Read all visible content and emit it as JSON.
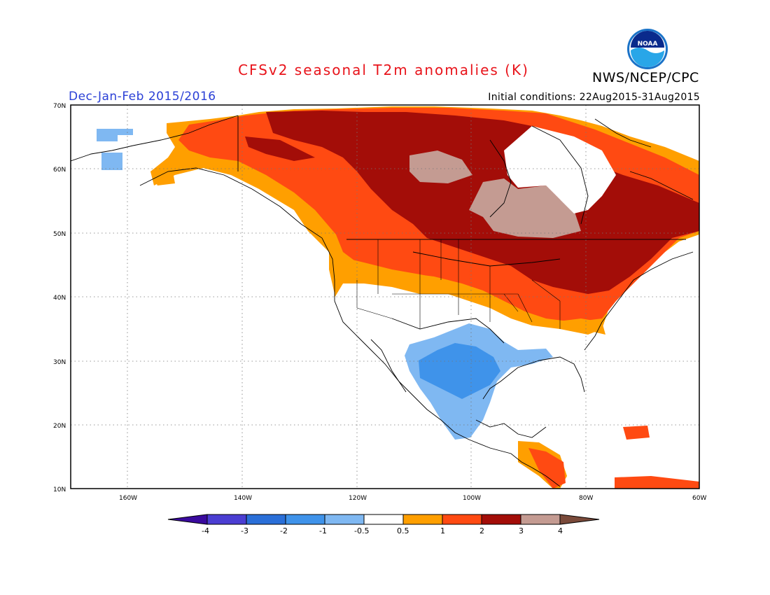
{
  "title": "CFSv2 seasonal T2m anomalies (K)",
  "agency": "NWS/NCEP/CPC",
  "logo_text": "NOAA",
  "season_label": "Dec-Jan-Feb 2015/2016",
  "initial_conditions": "Initial conditions: 22Aug2015-31Aug2015",
  "map": {
    "lon_range": [
      -172,
      -60
    ],
    "lat_range": [
      10,
      70
    ],
    "lat_ticks": [
      "10N",
      "20N",
      "30N",
      "40N",
      "50N",
      "60N",
      "70N"
    ],
    "lon_ticks": [
      "160W",
      "140W",
      "120W",
      "100W",
      "80W",
      "60W"
    ],
    "gridlines": true
  },
  "colorbar": {
    "labels": [
      "-4",
      "-3",
      "-2",
      "-1",
      "-0.5",
      "0.5",
      "1",
      "2",
      "3",
      "4"
    ],
    "colors": [
      "#3a0a9e",
      "#4b3ed2",
      "#2a6fd8",
      "#3f93ea",
      "#7fb8f2",
      "#ffffff",
      "#ff9f00",
      "#ff4a12",
      "#a30d08",
      "#c49b92",
      "#7a4a3a"
    ]
  },
  "legend_colors": {
    "warm_0_5_1": "#ff9f00",
    "warm_1_2": "#ff4a12",
    "warm_2_3": "#a30d08",
    "warm_3_4": "#c49b92",
    "cool_m1_m0_5": "#7fb8f2",
    "cool_m2_m1": "#3f93ea"
  }
}
